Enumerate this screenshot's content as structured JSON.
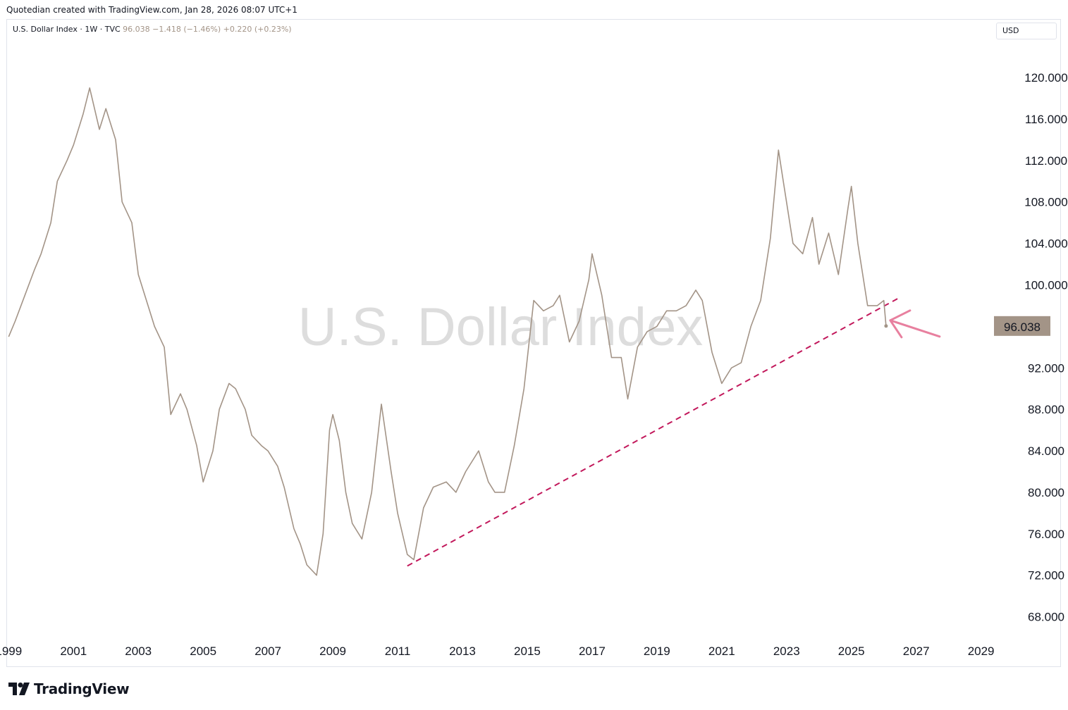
{
  "caption": "Quotedian created with TradingView.com, Jan 28, 2026 08:07 UTC+1",
  "legend": {
    "symbol": "U.S. Dollar Index · 1W · TVC",
    "last": "96.038",
    "change": "−1.418 (−1.46%)",
    "ext_change": "+0.220 (+0.23%)"
  },
  "currency_label": "USD",
  "watermark": "U.S. Dollar Index",
  "brand": "TradingView",
  "colors": {
    "line": "#a39487",
    "trend": "#c2185b",
    "arrow": "#e8809f",
    "badge": "#a39487",
    "watermark": "#dddddd"
  },
  "chart_data": {
    "type": "line",
    "ylim": [
      65.8,
      123.4
    ],
    "xlim": [
      1998.95,
      2029.4
    ],
    "y_ticks": [
      "120.000",
      "116.000",
      "112.000",
      "108.000",
      "104.000",
      "100.000",
      "92.000",
      "88.000",
      "84.000",
      "80.000",
      "76.000",
      "72.000",
      "68.000"
    ],
    "y_tick_values": [
      120,
      116,
      112,
      108,
      104,
      100,
      92,
      88,
      84,
      80,
      76,
      72,
      68
    ],
    "x_ticks": [
      "1999",
      "2001",
      "2003",
      "2005",
      "2007",
      "2009",
      "2011",
      "2013",
      "2015",
      "2017",
      "2019",
      "2021",
      "2023",
      "2025",
      "2027",
      "2029"
    ],
    "x_tick_values": [
      1999,
      2001,
      2003,
      2005,
      2007,
      2009,
      2011,
      2013,
      2015,
      2017,
      2019,
      2021,
      2023,
      2025,
      2027,
      2029
    ],
    "last_value": 96.038,
    "last_label": "96.038",
    "series": [
      {
        "x": [
          1999.0,
          1999.2,
          1999.5,
          1999.8,
          2000.0,
          2000.3,
          2000.5,
          2000.8,
          2001.0,
          2001.3,
          2001.5,
          2001.8,
          2002.0,
          2002.3,
          2002.5,
          2002.8,
          2003.0,
          2003.3,
          2003.5,
          2003.8,
          2004.0,
          2004.3,
          2004.5,
          2004.8,
          2005.0,
          2005.3,
          2005.5,
          2005.8,
          2006.0,
          2006.3,
          2006.5,
          2006.8,
          2007.0,
          2007.3,
          2007.5,
          2007.8,
          2008.0,
          2008.2,
          2008.5,
          2008.7,
          2008.9,
          2009.0,
          2009.2,
          2009.4,
          2009.6,
          2009.9,
          2010.2,
          2010.5,
          2010.8,
          2011.0,
          2011.3,
          2011.5,
          2011.8,
          2012.1,
          2012.5,
          2012.8,
          2013.1,
          2013.5,
          2013.8,
          2014.0,
          2014.3,
          2014.6,
          2014.9,
          2015.2,
          2015.5,
          2015.8,
          2016.0,
          2016.3,
          2016.6,
          2016.9,
          2017.0,
          2017.3,
          2017.6,
          2017.9,
          2018.1,
          2018.4,
          2018.7,
          2019.0,
          2019.3,
          2019.6,
          2019.9,
          2020.2,
          2020.4,
          2020.7,
          2021.0,
          2021.3,
          2021.6,
          2021.9,
          2022.2,
          2022.5,
          2022.75,
          2022.9,
          2023.2,
          2023.5,
          2023.8,
          2024.0,
          2024.3,
          2024.6,
          2024.9,
          2025.0,
          2025.2,
          2025.5,
          2025.8,
          2026.0,
          2026.07
        ],
        "y": [
          95.0,
          96.5,
          99.0,
          101.5,
          103.0,
          106.0,
          110.0,
          112.0,
          113.5,
          116.5,
          119.0,
          115.0,
          117.0,
          114.0,
          108.0,
          106.0,
          101.0,
          98.0,
          96.0,
          94.0,
          87.5,
          89.5,
          88.0,
          84.5,
          81.0,
          84.0,
          88.0,
          90.5,
          90.0,
          88.0,
          85.5,
          84.5,
          84.0,
          82.5,
          80.5,
          76.5,
          75.0,
          73.0,
          72.0,
          76.0,
          86.0,
          87.5,
          85.0,
          80.0,
          77.0,
          75.5,
          80.0,
          88.5,
          82.0,
          78.0,
          74.0,
          73.5,
          78.5,
          80.5,
          81.0,
          80.0,
          82.0,
          84.0,
          81.0,
          80.0,
          80.0,
          84.5,
          90.0,
          98.5,
          97.5,
          98.0,
          99.0,
          94.5,
          96.5,
          100.5,
          103.0,
          99.0,
          93.0,
          93.0,
          89.0,
          94.0,
          95.5,
          96.0,
          97.5,
          97.5,
          98.0,
          99.5,
          98.5,
          93.5,
          90.5,
          92.0,
          92.5,
          96.0,
          98.5,
          104.5,
          113.0,
          110.0,
          104.0,
          103.0,
          106.5,
          102.0,
          105.0,
          101.0,
          107.5,
          109.5,
          104.0,
          98.0,
          98.0,
          98.5,
          96.04
        ]
      }
    ],
    "trendline": {
      "x": [
        2011.3,
        2026.5
      ],
      "y": [
        72.9,
        98.8
      ]
    }
  }
}
